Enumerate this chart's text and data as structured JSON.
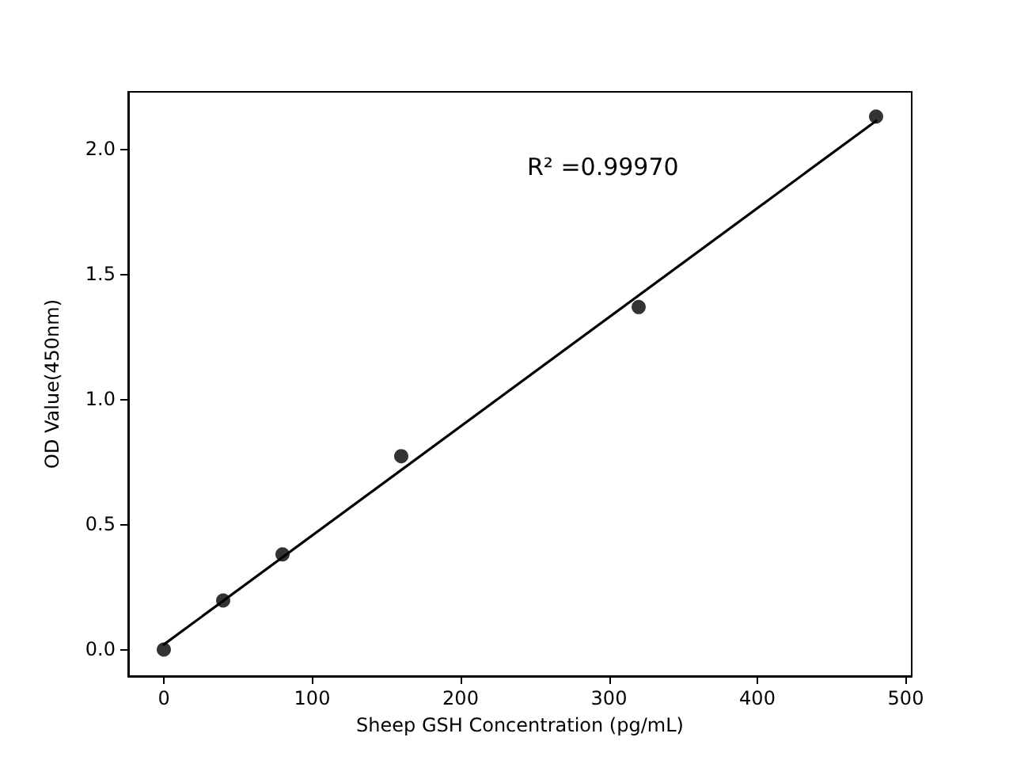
{
  "chart_data": {
    "type": "scatter",
    "xlabel": "Sheep GSH Concentration (pg/mL)",
    "ylabel": "OD Value(450nm)",
    "annotations": [
      "R² =0.99970"
    ],
    "series": [
      {
        "color": "#000000",
        "marker": "circle",
        "x": [
          0,
          40,
          80,
          160,
          320,
          480
        ],
        "values": [
          0,
          0.196,
          0.38,
          0.772,
          1.367,
          2.127
        ]
      },
      {
        "type": "line",
        "color": "#000000",
        "marker": "none",
        "line_style": "solid",
        "x": [
          0,
          480
        ],
        "values": [
          0.02,
          2.11
        ]
      }
    ],
    "xlim": [
      -24,
      504
    ],
    "xticks": [
      0,
      100,
      200,
      300,
      400,
      500
    ],
    "ylim": [
      -0.106,
      2.226
    ],
    "yticks": [
      {
        "value": 0,
        "label": "0.0"
      },
      0.5,
      {
        "value": 1,
        "label": "1.0"
      },
      1.5,
      {
        "value": 2,
        "label": "2.0"
      }
    ],
    "grid": false
  }
}
